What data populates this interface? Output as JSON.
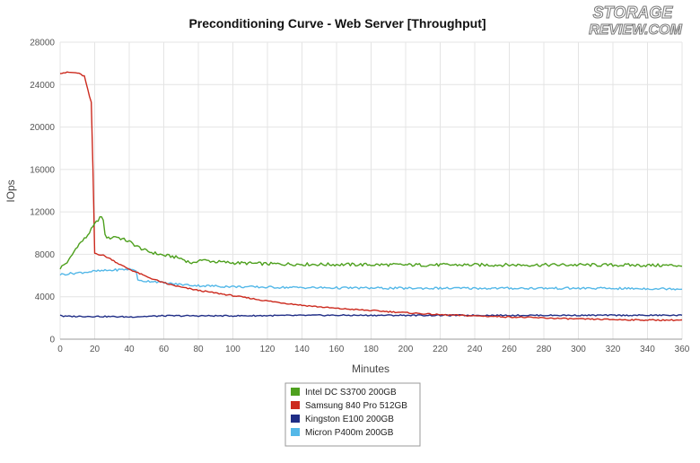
{
  "logo": {
    "line1": "STORAGE",
    "line2": "REVIEW.COM"
  },
  "chart_data": {
    "type": "line",
    "title": "Preconditioning Curve - Web Server [Throughput]",
    "xlabel": "Minutes",
    "ylabel": "IOps",
    "xlim": [
      0,
      360
    ],
    "ylim": [
      0,
      28000
    ],
    "xticks": [
      0,
      20,
      40,
      60,
      80,
      100,
      120,
      140,
      160,
      180,
      200,
      220,
      240,
      260,
      280,
      300,
      320,
      340,
      360
    ],
    "yticks": [
      0,
      4000,
      8000,
      12000,
      16000,
      20000,
      24000,
      28000
    ],
    "grid": true,
    "legend_position": "bottom-center",
    "series": [
      {
        "name": "Intel DC S3700 200GB",
        "color": "#4ea01e",
        "points": [
          [
            0,
            6700
          ],
          [
            5,
            7400
          ],
          [
            10,
            8800
          ],
          [
            15,
            9600
          ],
          [
            20,
            10800
          ],
          [
            23,
            11500
          ],
          [
            25,
            11300
          ],
          [
            26,
            9800
          ],
          [
            28,
            9500
          ],
          [
            32,
            9700
          ],
          [
            35,
            9500
          ],
          [
            40,
            9200
          ],
          [
            45,
            8700
          ],
          [
            50,
            8300
          ],
          [
            55,
            8100
          ],
          [
            60,
            7900
          ],
          [
            65,
            7800
          ],
          [
            70,
            7600
          ],
          [
            75,
            7250
          ],
          [
            78,
            7100
          ],
          [
            80,
            7500
          ],
          [
            90,
            7300
          ],
          [
            100,
            7200
          ],
          [
            120,
            7100
          ],
          [
            150,
            7050
          ],
          [
            200,
            7000
          ],
          [
            250,
            7000
          ],
          [
            300,
            7000
          ],
          [
            360,
            6950
          ]
        ]
      },
      {
        "name": "Samsung 840 Pro 512GB",
        "color": "#cc2a1e",
        "points": [
          [
            0,
            25100
          ],
          [
            5,
            25150
          ],
          [
            10,
            25100
          ],
          [
            14,
            24800
          ],
          [
            16,
            23500
          ],
          [
            18,
            22300
          ],
          [
            19,
            16000
          ],
          [
            20,
            8100
          ],
          [
            25,
            7900
          ],
          [
            30,
            7500
          ],
          [
            35,
            7000
          ],
          [
            40,
            6600
          ],
          [
            50,
            5900
          ],
          [
            60,
            5300
          ],
          [
            70,
            4900
          ],
          [
            80,
            4600
          ],
          [
            100,
            4100
          ],
          [
            120,
            3600
          ],
          [
            140,
            3200
          ],
          [
            160,
            2900
          ],
          [
            180,
            2700
          ],
          [
            200,
            2500
          ],
          [
            220,
            2300
          ],
          [
            240,
            2200
          ],
          [
            260,
            2100
          ],
          [
            280,
            2000
          ],
          [
            300,
            1900
          ],
          [
            320,
            1850
          ],
          [
            340,
            1800
          ],
          [
            360,
            1800
          ]
        ]
      },
      {
        "name": "Kingston E100 200GB",
        "color": "#1f2d86",
        "points": [
          [
            0,
            2300
          ],
          [
            2,
            2150
          ],
          [
            20,
            2150
          ],
          [
            40,
            2100
          ],
          [
            60,
            2200
          ],
          [
            100,
            2200
          ],
          [
            150,
            2250
          ],
          [
            200,
            2250
          ],
          [
            250,
            2250
          ],
          [
            300,
            2250
          ],
          [
            360,
            2250
          ]
        ]
      },
      {
        "name": "Micron P400m 200GB",
        "color": "#54b8e8",
        "points": [
          [
            0,
            6100
          ],
          [
            10,
            6250
          ],
          [
            20,
            6400
          ],
          [
            30,
            6500
          ],
          [
            40,
            6600
          ],
          [
            44,
            6500
          ],
          [
            45,
            5500
          ],
          [
            55,
            5450
          ],
          [
            60,
            5300
          ],
          [
            70,
            5150
          ],
          [
            80,
            5050
          ],
          [
            100,
            4950
          ],
          [
            120,
            4900
          ],
          [
            150,
            4850
          ],
          [
            200,
            4800
          ],
          [
            250,
            4800
          ],
          [
            300,
            4800
          ],
          [
            360,
            4750
          ]
        ]
      }
    ]
  }
}
